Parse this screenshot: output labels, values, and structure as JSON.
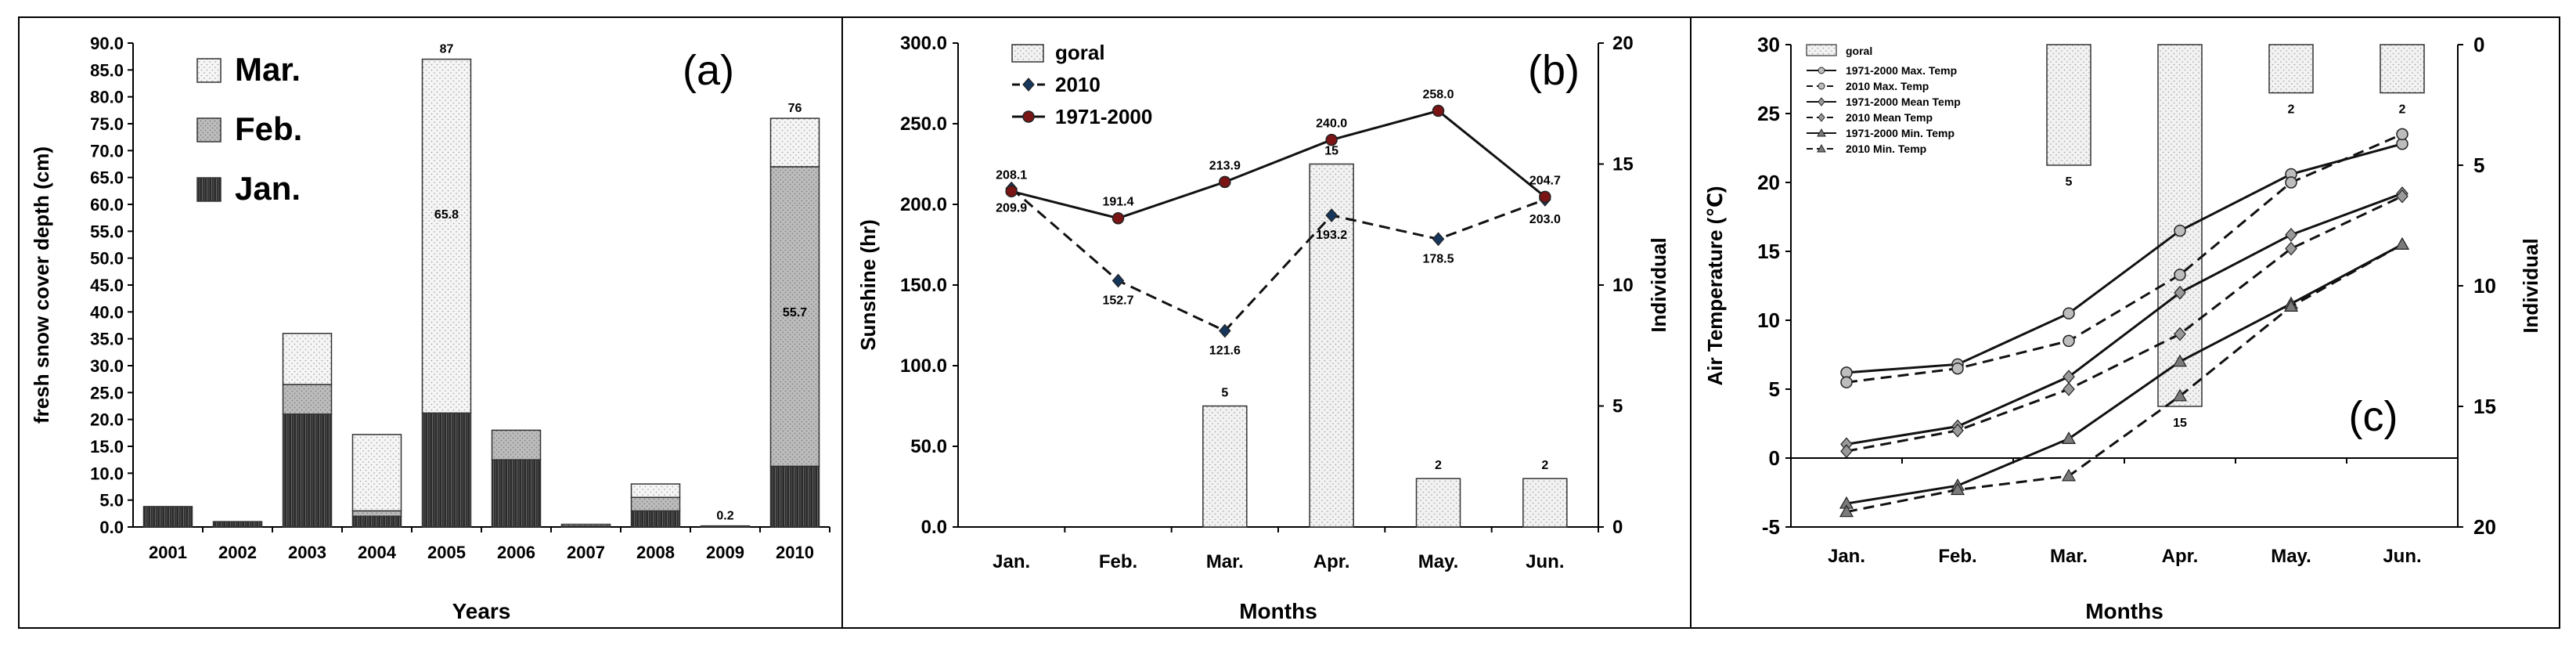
{
  "colors": {
    "snow_mar": "#f4f4f4",
    "snow_feb": "#b9b9b9",
    "snow_jan": "#2c2c2c",
    "goral_bar": "#eeeeee",
    "line_1971": "#7b1515",
    "line_2010": "#16365c",
    "axis": "#000000",
    "grid": "#e6e6e6"
  },
  "chart_data": [
    {
      "type": "bar",
      "stacked": true,
      "panel_label": "(a)",
      "title": "",
      "xlabel": "Years",
      "ylabel": "fresh snow  cover depth  (cm)",
      "categories": [
        "2001",
        "2002",
        "2003",
        "2004",
        "2005",
        "2006",
        "2007",
        "2008",
        "2009",
        "2010"
      ],
      "ylim": [
        0,
        90
      ],
      "ytick_step": 5,
      "ytick_labels": [
        "0.0",
        "5.0",
        "10.0",
        "15.0",
        "20.0",
        "25.0",
        "30.0",
        "35.0",
        "40.0",
        "45.0",
        "50.0",
        "55.0",
        "60.0",
        "65.0",
        "70.0",
        "75.0",
        "80.0",
        "85.0",
        "90.0"
      ],
      "legend_position": "top-left",
      "series": [
        {
          "name": "Jan.",
          "values": [
            3.8,
            1.0,
            21.0,
            2.0,
            21.2,
            12.5,
            0.2,
            3.0,
            0.2,
            11.3
          ]
        },
        {
          "name": "Feb.",
          "values": [
            0.0,
            0.0,
            5.5,
            1.0,
            0.0,
            5.5,
            0.0,
            2.5,
            0.0,
            55.7
          ]
        },
        {
          "name": "Mar.",
          "values": [
            0.0,
            0.0,
            9.5,
            14.2,
            65.8,
            0.0,
            0.3,
            2.5,
            0.0,
            9.0
          ]
        }
      ],
      "data_labels": [
        {
          "category": "2005",
          "text": "87",
          "position": "top"
        },
        {
          "category": "2005",
          "text": "65.8",
          "position": "mid-mar"
        },
        {
          "category": "2009",
          "text": "0.2",
          "position": "top"
        },
        {
          "category": "2010",
          "text": "76",
          "position": "top"
        },
        {
          "category": "2010",
          "text": "55.7",
          "position": "mid-feb"
        }
      ]
    },
    {
      "type": "bar+line",
      "panel_label": "(b)",
      "title": "",
      "xlabel": "Months",
      "ylabel": "Sunshine (hr)",
      "y2label": "Individual",
      "categories": [
        "Jan.",
        "Feb.",
        "Mar.",
        "Apr.",
        "May.",
        "Jun."
      ],
      "ylim": [
        0,
        300
      ],
      "ytick_labels": [
        "0.0",
        "50.0",
        "100.0",
        "150.0",
        "200.0",
        "250.0",
        "300.0"
      ],
      "y2lim": [
        0,
        20
      ],
      "y2tick_labels": [
        "0",
        "5",
        "10",
        "15",
        "20"
      ],
      "legend_position": "top-left",
      "bars": {
        "name": "goral",
        "axis": "right",
        "values": [
          null,
          null,
          5,
          15,
          2,
          2
        ],
        "labels": [
          "",
          "",
          "5",
          "15",
          "2",
          "2"
        ]
      },
      "series": [
        {
          "name": "2010",
          "style": "dashed",
          "marker": "diamond",
          "values": [
            209.9,
            152.7,
            121.6,
            193.2,
            178.5,
            203.0
          ],
          "labels": [
            "209.9",
            "152.7",
            "121.6",
            "193.2",
            "178.5",
            "203.0"
          ]
        },
        {
          "name": "1971-2000",
          "style": "solid",
          "marker": "circle",
          "values": [
            208.1,
            191.4,
            213.9,
            240.0,
            258.0,
            204.7
          ],
          "labels": [
            "208.1",
            "191.4",
            "213.9",
            "240.0",
            "258.0",
            "204.7"
          ]
        }
      ]
    },
    {
      "type": "bar+line",
      "panel_label": "(c)",
      "title": "",
      "xlabel": "Months",
      "ylabel": "Air Temperature (℃)",
      "y2label": "Individual",
      "categories": [
        "Jan.",
        "Feb.",
        "Mar.",
        "Apr.",
        "May.",
        "Jun."
      ],
      "ylim": [
        -5,
        30
      ],
      "ytick_labels": [
        "-5",
        "0",
        "5",
        "10",
        "15",
        "20",
        "25",
        "30"
      ],
      "y2lim": [
        0,
        20
      ],
      "y2_inverted": true,
      "y2tick_labels": [
        "0",
        "5",
        "10",
        "15",
        "20"
      ],
      "legend_position": "top-left",
      "bars": {
        "name": "goral",
        "axis": "right-inverted",
        "values": [
          null,
          null,
          5,
          15,
          2,
          2
        ],
        "labels": [
          "",
          "",
          "5",
          "15",
          "2",
          "2"
        ]
      },
      "series": [
        {
          "name": "1971-2000 Max. Temp",
          "style": "solid",
          "marker": "circle",
          "values": [
            6.2,
            6.8,
            10.5,
            16.5,
            20.6,
            22.8
          ]
        },
        {
          "name": "2010 Max. Temp",
          "style": "dashed",
          "marker": "circle",
          "values": [
            5.5,
            6.5,
            8.5,
            13.3,
            20.0,
            23.5
          ]
        },
        {
          "name": "1971-2000 Mean Temp",
          "style": "solid",
          "marker": "diamond",
          "values": [
            1.0,
            2.3,
            5.9,
            12.0,
            16.2,
            19.2
          ]
        },
        {
          "name": "2010 Mean Temp",
          "style": "dashed",
          "marker": "diamond",
          "values": [
            0.5,
            2.0,
            5.0,
            9.0,
            15.2,
            19.0
          ]
        },
        {
          "name": "1971-2000 Min. Temp",
          "style": "solid",
          "marker": "triangle",
          "values": [
            -3.3,
            -2.0,
            1.4,
            7.0,
            11.2,
            15.5
          ]
        },
        {
          "name": "2010 Min. Temp",
          "style": "dashed",
          "marker": "triangle",
          "values": [
            -3.9,
            -2.3,
            -1.3,
            4.5,
            11.0,
            15.5
          ]
        }
      ]
    }
  ]
}
